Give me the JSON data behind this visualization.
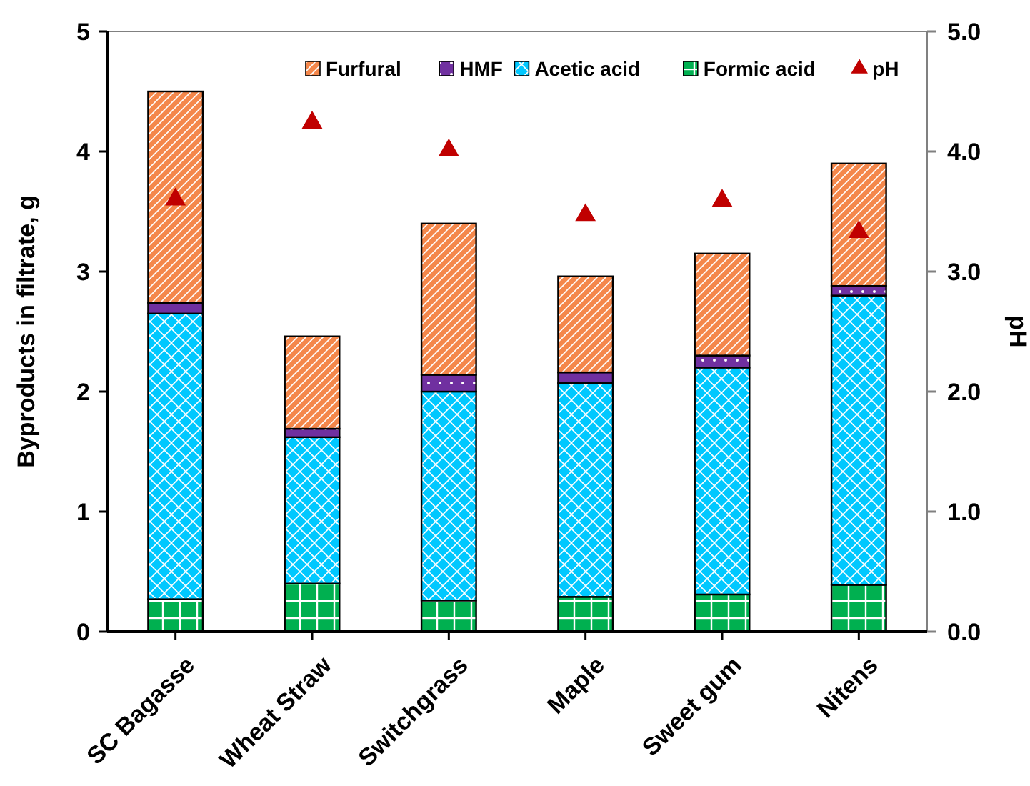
{
  "chart_data": {
    "type": "bar",
    "stacked": true,
    "ylabel": "Byproducts in filtrate, g",
    "y2label": "pH",
    "categories": [
      "SC Bagasse",
      "Wheat Straw",
      "Switchgrass",
      "Maple",
      "Sweet gum",
      "Nitens"
    ],
    "series": [
      {
        "name": "Formic acid",
        "color": "#00b050",
        "values": [
          0.27,
          0.4,
          0.26,
          0.29,
          0.31,
          0.39
        ]
      },
      {
        "name": "Acetic acid",
        "color": "#00c8ff",
        "values": [
          2.38,
          1.22,
          1.74,
          1.78,
          1.89,
          2.41
        ]
      },
      {
        "name": "HMF",
        "color": "#7030a0",
        "values": [
          0.09,
          0.07,
          0.14,
          0.09,
          0.1,
          0.08
        ]
      },
      {
        "name": "Furfural",
        "color": "#f4874b",
        "values": [
          1.76,
          0.77,
          1.26,
          0.8,
          0.85,
          1.02
        ]
      },
      {
        "name": "pH",
        "type": "scatter",
        "axis": "y2",
        "marker": "triangle",
        "color": "#c00000",
        "x": [
          "SC Bagasse",
          "Wheat Straw",
          "Switchgrass",
          "Maple",
          "Sweet gum",
          "Nitens"
        ],
        "values": [
          3.6,
          4.24,
          4.01,
          3.47,
          3.59,
          3.33
        ]
      }
    ],
    "ylim": [
      0,
      5
    ],
    "yticks": [
      0,
      1,
      2,
      3,
      4,
      5
    ],
    "y2lim": [
      0,
      5
    ],
    "y2ticks": [
      {
        "value": 0,
        "label": "0.0"
      },
      {
        "value": 1,
        "label": "1.0"
      },
      {
        "value": 2,
        "label": "2.0"
      },
      {
        "value": 3,
        "label": "3.0"
      },
      {
        "value": 4,
        "label": "4.0"
      },
      {
        "value": 5,
        "label": "5.0"
      }
    ],
    "grid": false,
    "legend": "top right"
  }
}
